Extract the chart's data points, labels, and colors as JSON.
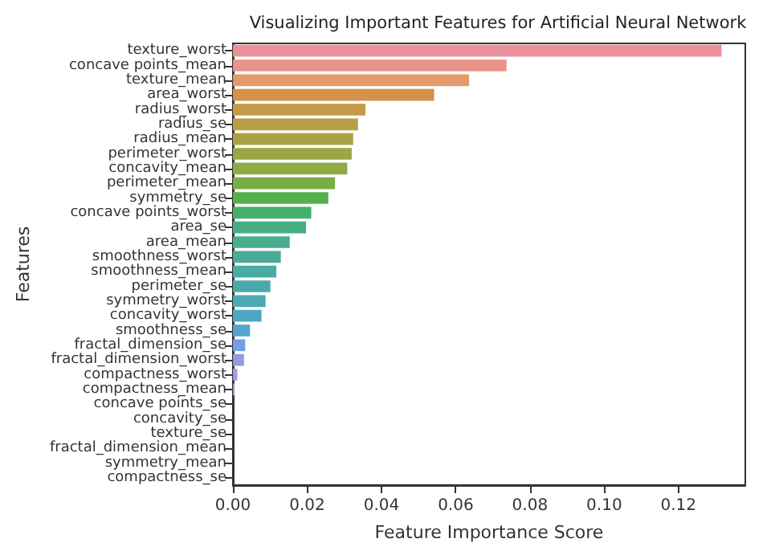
{
  "chart_data": {
    "type": "bar",
    "orientation": "horizontal",
    "title": "Visualizing Important Features for Artificial Neural Network",
    "xlabel": "Feature Importance Score",
    "ylabel": "Features",
    "categories": [
      "texture_worst",
      "concave points_mean",
      "texture_mean",
      "area_worst",
      "radius_worst",
      "radius_se",
      "radius_mean",
      "perimeter_worst",
      "concavity_mean",
      "perimeter_mean",
      "symmetry_se",
      "concave points_worst",
      "area_se",
      "area_mean",
      "smoothness_worst",
      "smoothness_mean",
      "perimeter_se",
      "symmetry_worst",
      "concavity_worst",
      "smoothness_se",
      "fractal_dimension_se",
      "fractal_dimension_worst",
      "compactness_worst",
      "compactness_mean",
      "concave points_se",
      "concavity_se",
      "texture_se",
      "fractal_dimension_mean",
      "symmetry_mean",
      "compactness_se"
    ],
    "values": [
      0.1316,
      0.0737,
      0.0636,
      0.0542,
      0.0357,
      0.0337,
      0.0324,
      0.032,
      0.0308,
      0.0275,
      0.0257,
      0.0211,
      0.0197,
      0.0153,
      0.0129,
      0.0117,
      0.0101,
      0.0088,
      0.0077,
      0.0046,
      0.0033,
      0.003,
      0.0012,
      0.0004,
      0,
      0,
      0,
      0,
      0,
      0
    ],
    "colors": [
      "#e9909b",
      "#e99488",
      "#e39a6a",
      "#d4924a",
      "#c59a45",
      "#b89e45",
      "#aaa244",
      "#9da645",
      "#8daa46",
      "#78ae47",
      "#55b04c",
      "#45b06e",
      "#47ae82",
      "#48ad8f",
      "#49ac99",
      "#4aaba2",
      "#4aaaab",
      "#4ca9b5",
      "#4ea7c0",
      "#53a4d0",
      "#72a0e0",
      "#939ae6",
      "#aa96e6",
      "#bc90e2",
      "#cc8cdc",
      "#da88d4",
      "#e287c6",
      "#e78ab8",
      "#e98daa",
      "#e98ea3"
    ],
    "xlim": [
      0,
      0.138
    ],
    "xticks": [
      {
        "value": 0,
        "label": "0.00"
      },
      {
        "value": 0.02,
        "label": "0.02"
      },
      {
        "value": 0.04,
        "label": "0.04"
      },
      {
        "value": 0.06,
        "label": "0.06"
      },
      {
        "value": 0.08,
        "label": "0.08"
      },
      {
        "value": 0.1,
        "label": "0.10"
      },
      {
        "value": 0.12,
        "label": "0.12"
      }
    ],
    "grid": false
  }
}
